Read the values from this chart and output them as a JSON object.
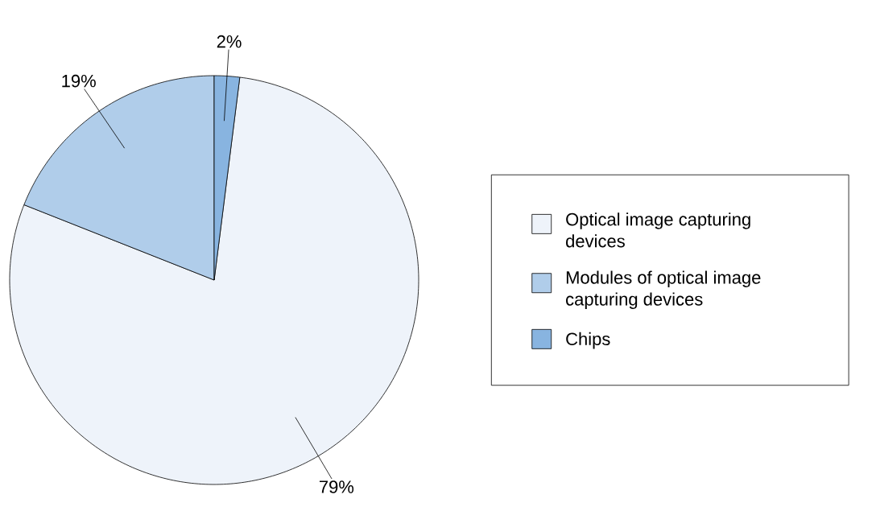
{
  "chart_data": {
    "type": "pie",
    "categories": [
      "Optical image capturing devices",
      "Modules of optical image capturing devices",
      "Chips"
    ],
    "values": [
      79,
      19,
      2
    ],
    "colors": [
      "#eef3fa",
      "#b0cdea",
      "#88b4e0"
    ],
    "value_labels": [
      "79%",
      "19%",
      "2%"
    ],
    "legend": "right"
  }
}
